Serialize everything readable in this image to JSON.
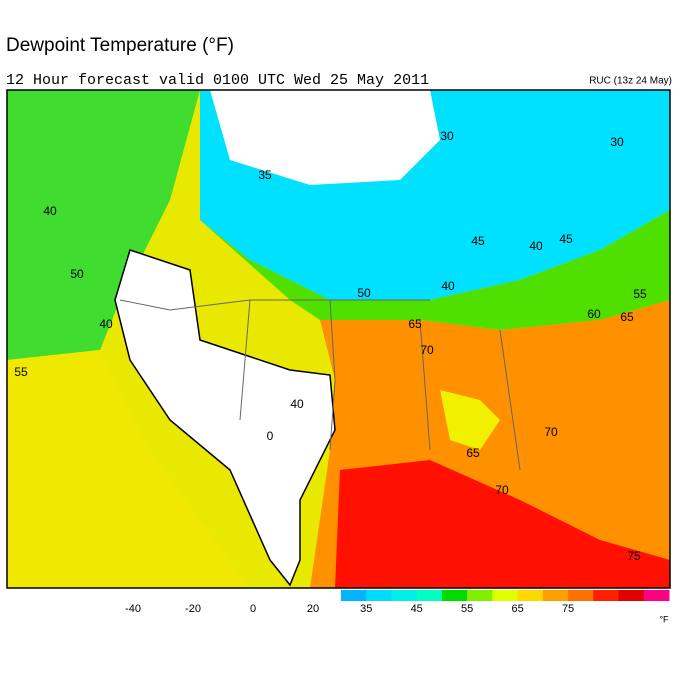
{
  "header": {
    "title": "Dewpoint Temperature (°F)",
    "subtitle": "12 Hour forecast valid 0100 UTC Wed 25 May 2011",
    "model": "RUC (13z 24 May)"
  },
  "map": {
    "contour_labels": [
      "30",
      "30",
      "35",
      "40",
      "45",
      "40",
      "45",
      "50",
      "50",
      "55",
      "40",
      "40",
      "55",
      "60",
      "65",
      "65",
      "70",
      "40",
      "0",
      "70",
      "65",
      "70",
      "75"
    ]
  },
  "legend": {
    "gray_labels": [
      -40,
      -20,
      0,
      20
    ],
    "color_labels": [
      35,
      45,
      55,
      65,
      75
    ],
    "unit": "°F",
    "colors": [
      "#00b4ff",
      "#00dcff",
      "#00f0e8",
      "#00ffc0",
      "#00dc00",
      "#80f000",
      "#e0ff00",
      "#ffd800",
      "#ffa000",
      "#ff7000",
      "#ff2000",
      "#e00000",
      "#ff0080"
    ]
  }
}
